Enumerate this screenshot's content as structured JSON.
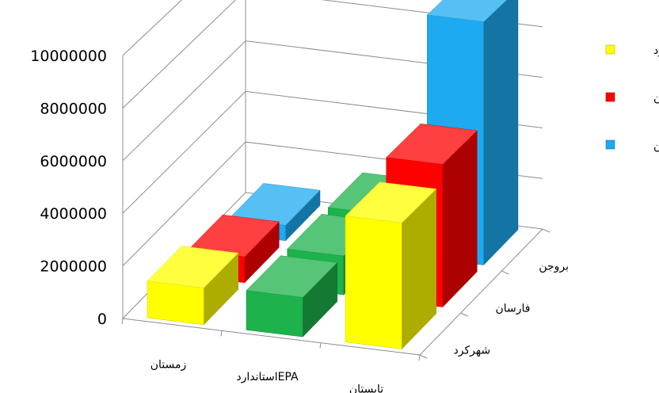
{
  "chart_data": {
    "type": "bar",
    "subtype": "3d-clustered-column",
    "title": "",
    "xlabel": "",
    "ylabel": "",
    "ylim": [
      0,
      10000000
    ],
    "yticks": [
      "0",
      "2000000",
      "4000000",
      "6000000",
      "8000000",
      "10000000"
    ],
    "categories": [
      "زمستان",
      "EPAاستاندارد",
      "تابستان"
    ],
    "depth_categories": [
      "شهرکرد",
      "فارسان",
      "بروجن"
    ],
    "grid": true,
    "legend_position": "right",
    "series": [
      {
        "name": "شهرکرد",
        "color": "#FFFF00",
        "values": [
          1400000,
          1500000,
          4800000
        ]
      },
      {
        "name": "فارسان",
        "color": "#FF0000",
        "values": [
          1000000,
          1500000,
          5500000
        ]
      },
      {
        "name": "بروجن",
        "color": "#1EAAF0",
        "values": [
          600000,
          1500000,
          9500000
        ]
      }
    ],
    "category_colors": {
      "EPAاستاندارد": "#1DB24B"
    }
  }
}
